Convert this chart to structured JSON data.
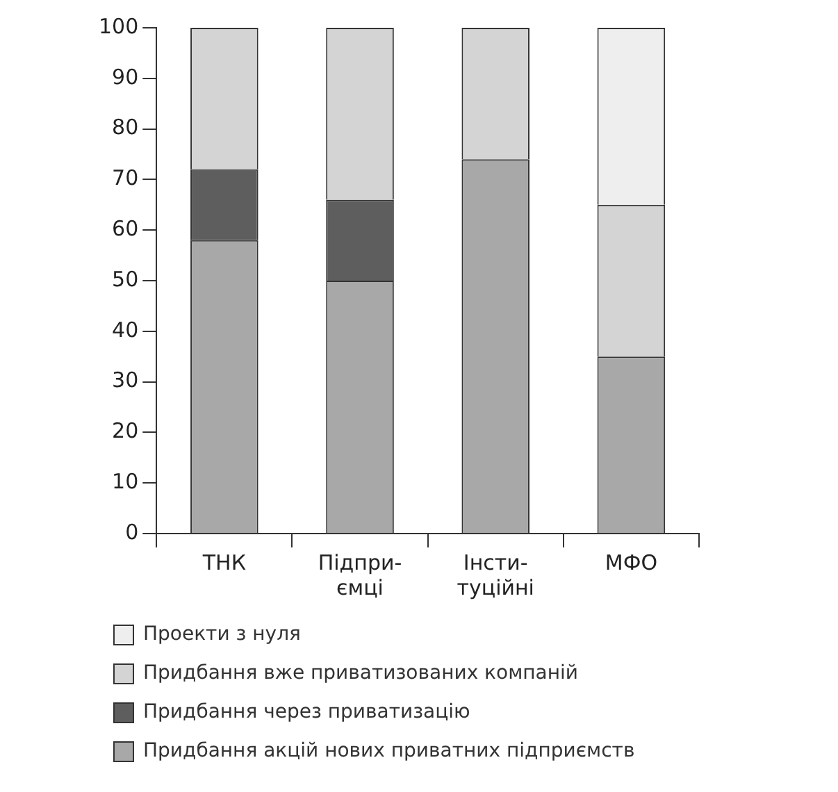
{
  "chart_data": {
    "type": "bar",
    "stacked": true,
    "categories": [
      "ТНК",
      "Підпри-\nємці",
      "Інсти-\nтуційні",
      "МФО"
    ],
    "series": [
      {
        "name": "Придбання акцій нових приватних підприємств",
        "color": "#a8a8a8",
        "values": [
          58,
          50,
          74,
          35
        ]
      },
      {
        "name": "Придбання через приватизацію",
        "color": "#5e5e5e",
        "values": [
          14,
          16,
          0,
          0
        ]
      },
      {
        "name": "Придбання вже приватизованих компаній",
        "color": "#d4d4d4",
        "values": [
          28,
          34,
          26,
          30
        ]
      },
      {
        "name": "Проекти з нуля",
        "color": "#eeeeee",
        "values": [
          0,
          0,
          0,
          35
        ]
      }
    ],
    "ylim": [
      0,
      100
    ],
    "yticks": [
      0,
      10,
      20,
      30,
      40,
      50,
      60,
      70,
      80,
      90,
      100
    ],
    "grid": false,
    "legend": "bottom"
  }
}
